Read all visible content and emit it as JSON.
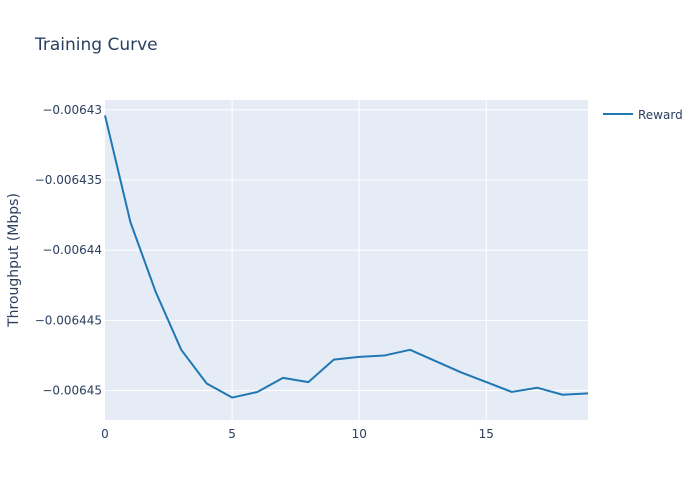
{
  "chart_data": {
    "type": "line",
    "title": "Training Curve",
    "xlabel": "",
    "ylabel": "Throughput (Mbps)",
    "xlim": [
      0,
      19
    ],
    "ylim": [
      -0.0064521,
      -0.0064293
    ],
    "x_ticks": [
      0,
      5,
      10,
      15
    ],
    "x_tick_labels": [
      "0",
      "5",
      "10",
      "15"
    ],
    "y_ticks": [
      -0.00643,
      -0.006435,
      -0.00644,
      -0.006445,
      -0.00645
    ],
    "y_tick_labels": [
      "−0.00643",
      "−0.006435",
      "−0.00644",
      "−0.006445",
      "−0.00645"
    ],
    "grid": true,
    "legend_position": "top-right",
    "series": [
      {
        "name": "Reward",
        "color": "#1f77b4",
        "x": [
          0,
          1,
          2,
          3,
          4,
          5,
          6,
          7,
          8,
          9,
          10,
          11,
          12,
          13,
          14,
          15,
          16,
          17,
          18,
          19
        ],
        "values": [
          -0.0064304,
          -0.006438,
          -0.006443,
          -0.0064471,
          -0.0064495,
          -0.0064505,
          -0.0064501,
          -0.0064491,
          -0.0064494,
          -0.0064478,
          -0.0064476,
          -0.0064475,
          -0.0064471,
          -0.0064479,
          -0.0064487,
          -0.0064494,
          -0.0064501,
          -0.0064498,
          -0.0064503,
          -0.0064502
        ]
      }
    ]
  },
  "colors": {
    "plot_background": "#e5ecf6",
    "grid": "#ffffff",
    "text": "#2a3f5f"
  }
}
